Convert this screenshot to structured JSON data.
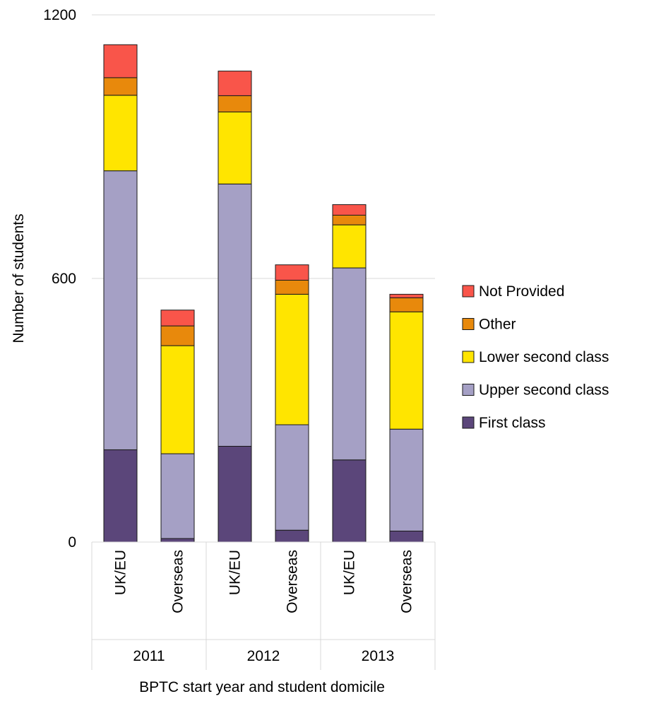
{
  "chart_data": {
    "type": "bar",
    "stacked": true,
    "title": "",
    "xlabel": "BPTC start year and student domicile",
    "ylabel": "Number of students",
    "ylim": [
      0,
      1200
    ],
    "yticks": [
      "0",
      "600",
      "1200"
    ],
    "grid": true,
    "legend_position": "right",
    "groups": [
      {
        "label": "2011",
        "categories": [
          "UK/EU",
          "Overseas"
        ]
      },
      {
        "label": "2012",
        "categories": [
          "UK/EU",
          "Overseas"
        ]
      },
      {
        "label": "2013",
        "categories": [
          "UK/EU",
          "Overseas"
        ]
      }
    ],
    "categories": [
      "UK/EU",
      "Overseas",
      "UK/EU",
      "Overseas",
      "UK/EU",
      "Overseas"
    ],
    "series": [
      {
        "name": "First class",
        "color": "#5b467a",
        "values": [
          210,
          8,
          218,
          27,
          187,
          25
        ]
      },
      {
        "name": "Upper second class",
        "color": "#a5a0c5",
        "values": [
          635,
          193,
          597,
          240,
          437,
          232
        ]
      },
      {
        "name": "Lower second class",
        "color": "#ffe500",
        "values": [
          172,
          246,
          164,
          297,
          98,
          267
        ]
      },
      {
        "name": "Other",
        "color": "#e8890c",
        "values": [
          40,
          45,
          37,
          32,
          22,
          32
        ]
      },
      {
        "name": "Not Provided",
        "color": "#f9554a",
        "values": [
          75,
          36,
          56,
          35,
          24,
          8
        ]
      }
    ]
  }
}
